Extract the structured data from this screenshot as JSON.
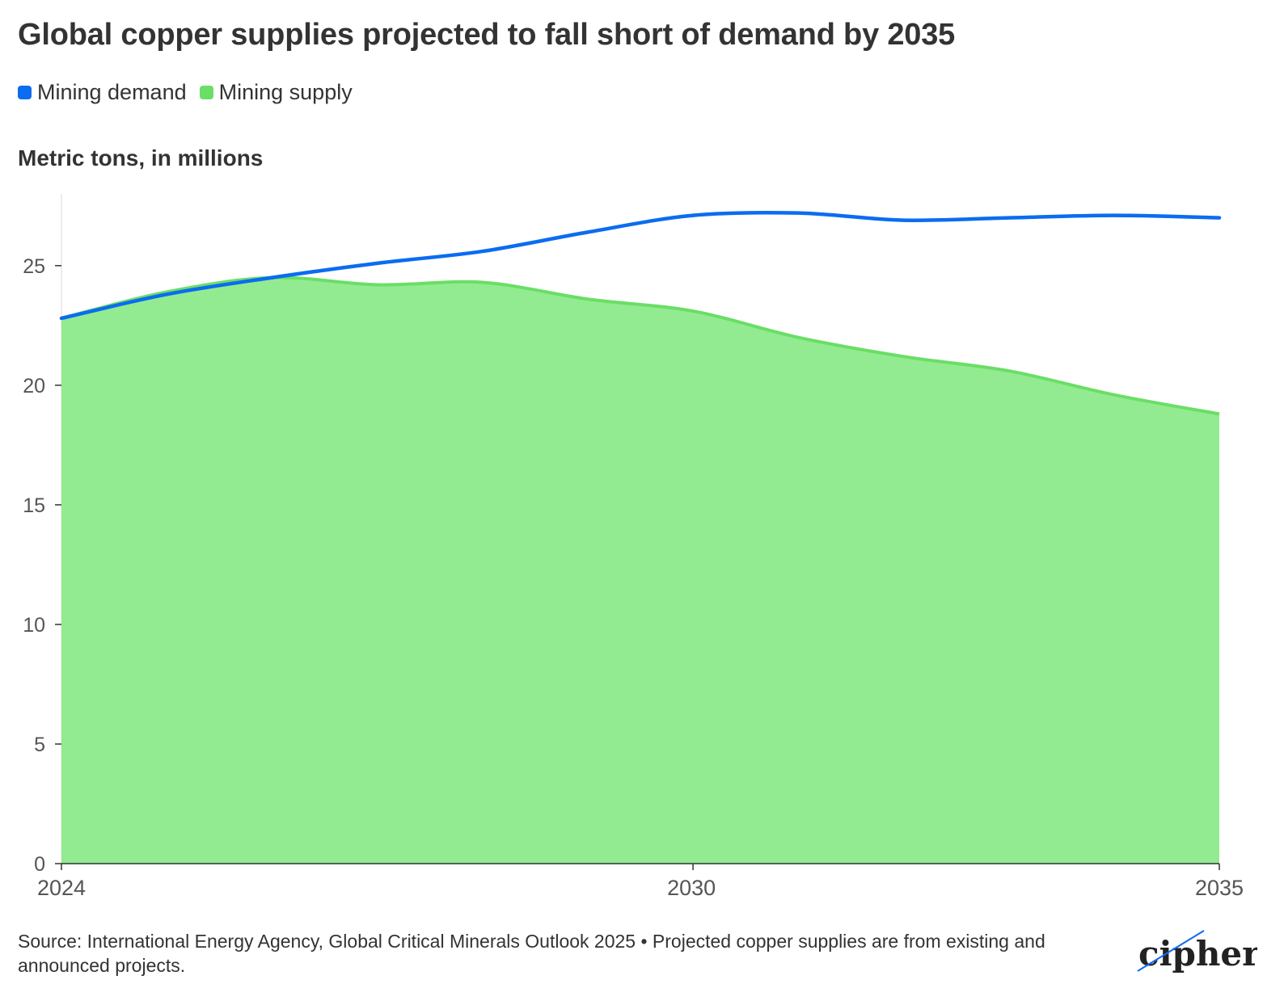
{
  "title": "Global copper supplies projected to fall short of demand by 2035",
  "unit_label": "Metric tons, in millions",
  "source": "Source: International Energy Agency, Global Critical Minerals Outlook 2025 • Projected copper supplies are from existing and announced projects.",
  "logo_text": "cipher",
  "colors": {
    "demand": "#0b6cf0",
    "supply_line": "#6ade66",
    "supply_fill": "#93eb91",
    "axis": "#333333",
    "text": "#333333"
  },
  "chart_data": {
    "type": "area",
    "x": [
      2024,
      2025,
      2026,
      2027,
      2028,
      2029,
      2030,
      2031,
      2032,
      2033,
      2034,
      2035
    ],
    "xticks": [
      "2024",
      "2030",
      "2035"
    ],
    "yticks": [
      "0",
      "5",
      "10",
      "15",
      "20",
      "25"
    ],
    "ylim": [
      0,
      28
    ],
    "xlim": [
      2024,
      2035
    ],
    "series": [
      {
        "name": "Mining demand",
        "type": "line",
        "values": [
          22.8,
          23.8,
          24.5,
          25.1,
          25.6,
          26.4,
          27.1,
          27.2,
          26.9,
          27.0,
          27.1,
          27.0
        ]
      },
      {
        "name": "Mining supply",
        "type": "area",
        "values": [
          22.8,
          23.9,
          24.5,
          24.2,
          24.3,
          23.6,
          23.1,
          22.0,
          21.2,
          20.6,
          19.6,
          18.8
        ]
      }
    ],
    "legend": "top-left",
    "grid": false
  }
}
